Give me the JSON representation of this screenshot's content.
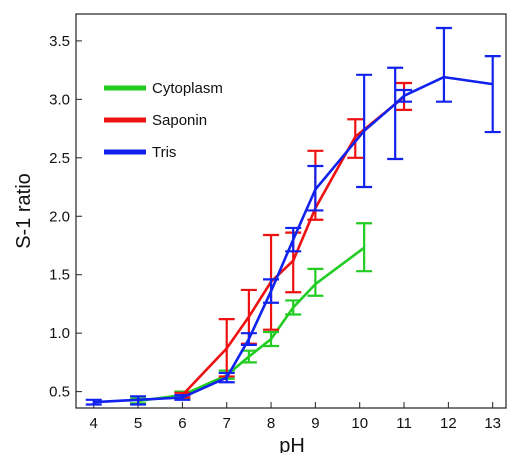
{
  "chart_data": {
    "type": "line",
    "xlabel": "pH",
    "ylabel": "S-1 ratio",
    "xlim": [
      3.6,
      13.3
    ],
    "ylim": [
      0.36,
      3.73
    ],
    "xticks": [
      "4",
      "5",
      "6",
      "7",
      "8",
      "9",
      "10",
      "11",
      "12",
      "13"
    ],
    "yticks": [
      "0.5",
      "1.0",
      "1.5",
      "2.0",
      "2.5",
      "3.0",
      "3.5"
    ],
    "legend_position": "top-left",
    "grid": false,
    "series": [
      {
        "name": "Cytoplasm",
        "color": "#22cc22",
        "points": [
          {
            "x": 5.0,
            "y": 0.42,
            "lo": 0.4,
            "hi": 0.44
          },
          {
            "x": 6.0,
            "y": 0.47,
            "lo": 0.44,
            "hi": 0.5
          },
          {
            "x": 7.0,
            "y": 0.64,
            "lo": 0.61,
            "hi": 0.68
          },
          {
            "x": 7.5,
            "y": 0.8,
            "lo": 0.75,
            "hi": 0.85
          },
          {
            "x": 8.0,
            "y": 0.95,
            "lo": 0.89,
            "hi": 1.01
          },
          {
            "x": 8.5,
            "y": 1.22,
            "lo": 1.16,
            "hi": 1.28
          },
          {
            "x": 9.0,
            "y": 1.42,
            "lo": 1.32,
            "hi": 1.55
          },
          {
            "x": 10.1,
            "y": 1.73,
            "lo": 1.53,
            "hi": 1.94
          }
        ]
      },
      {
        "name": "Saponin",
        "color": "#ee1111",
        "points": [
          {
            "x": 6.0,
            "y": 0.47,
            "lo": 0.45,
            "hi": 0.49
          },
          {
            "x": 7.0,
            "y": 0.87,
            "lo": 0.63,
            "hi": 1.12
          },
          {
            "x": 7.5,
            "y": 1.14,
            "lo": 0.91,
            "hi": 1.37
          },
          {
            "x": 8.0,
            "y": 1.44,
            "lo": 1.03,
            "hi": 1.84
          },
          {
            "x": 8.5,
            "y": 1.62,
            "lo": 1.35,
            "hi": 1.86
          },
          {
            "x": 9.0,
            "y": 2.07,
            "lo": 1.97,
            "hi": 2.56
          },
          {
            "x": 9.9,
            "y": 2.68,
            "lo": 2.5,
            "hi": 2.83
          },
          {
            "x": 11.0,
            "y": 3.02,
            "lo": 2.91,
            "hi": 3.14
          }
        ]
      },
      {
        "name": "Tris",
        "color": "#1122ee",
        "points": [
          {
            "x": 4.0,
            "y": 0.41,
            "lo": 0.39,
            "hi": 0.43
          },
          {
            "x": 5.0,
            "y": 0.43,
            "lo": 0.39,
            "hi": 0.46
          },
          {
            "x": 6.0,
            "y": 0.45,
            "lo": 0.43,
            "hi": 0.47
          },
          {
            "x": 7.0,
            "y": 0.62,
            "lo": 0.58,
            "hi": 0.66
          },
          {
            "x": 7.5,
            "y": 0.95,
            "lo": 0.9,
            "hi": 1.0
          },
          {
            "x": 8.0,
            "y": 1.36,
            "lo": 1.26,
            "hi": 1.46
          },
          {
            "x": 8.5,
            "y": 1.8,
            "lo": 1.7,
            "hi": 1.9
          },
          {
            "x": 9.0,
            "y": 2.23,
            "lo": 2.05,
            "hi": 2.43
          },
          {
            "x": 10.1,
            "y": 2.73,
            "lo": 2.25,
            "hi": 3.21
          },
          {
            "x": 10.8,
            "y": 2.96,
            "lo": 2.49,
            "hi": 3.27
          },
          {
            "x": 11.0,
            "y": 3.03,
            "lo": 2.98,
            "hi": 3.08
          },
          {
            "x": 11.9,
            "y": 3.19,
            "lo": 2.98,
            "hi": 3.61
          },
          {
            "x": 13.0,
            "y": 3.13,
            "lo": 2.72,
            "hi": 3.37
          }
        ]
      }
    ]
  }
}
